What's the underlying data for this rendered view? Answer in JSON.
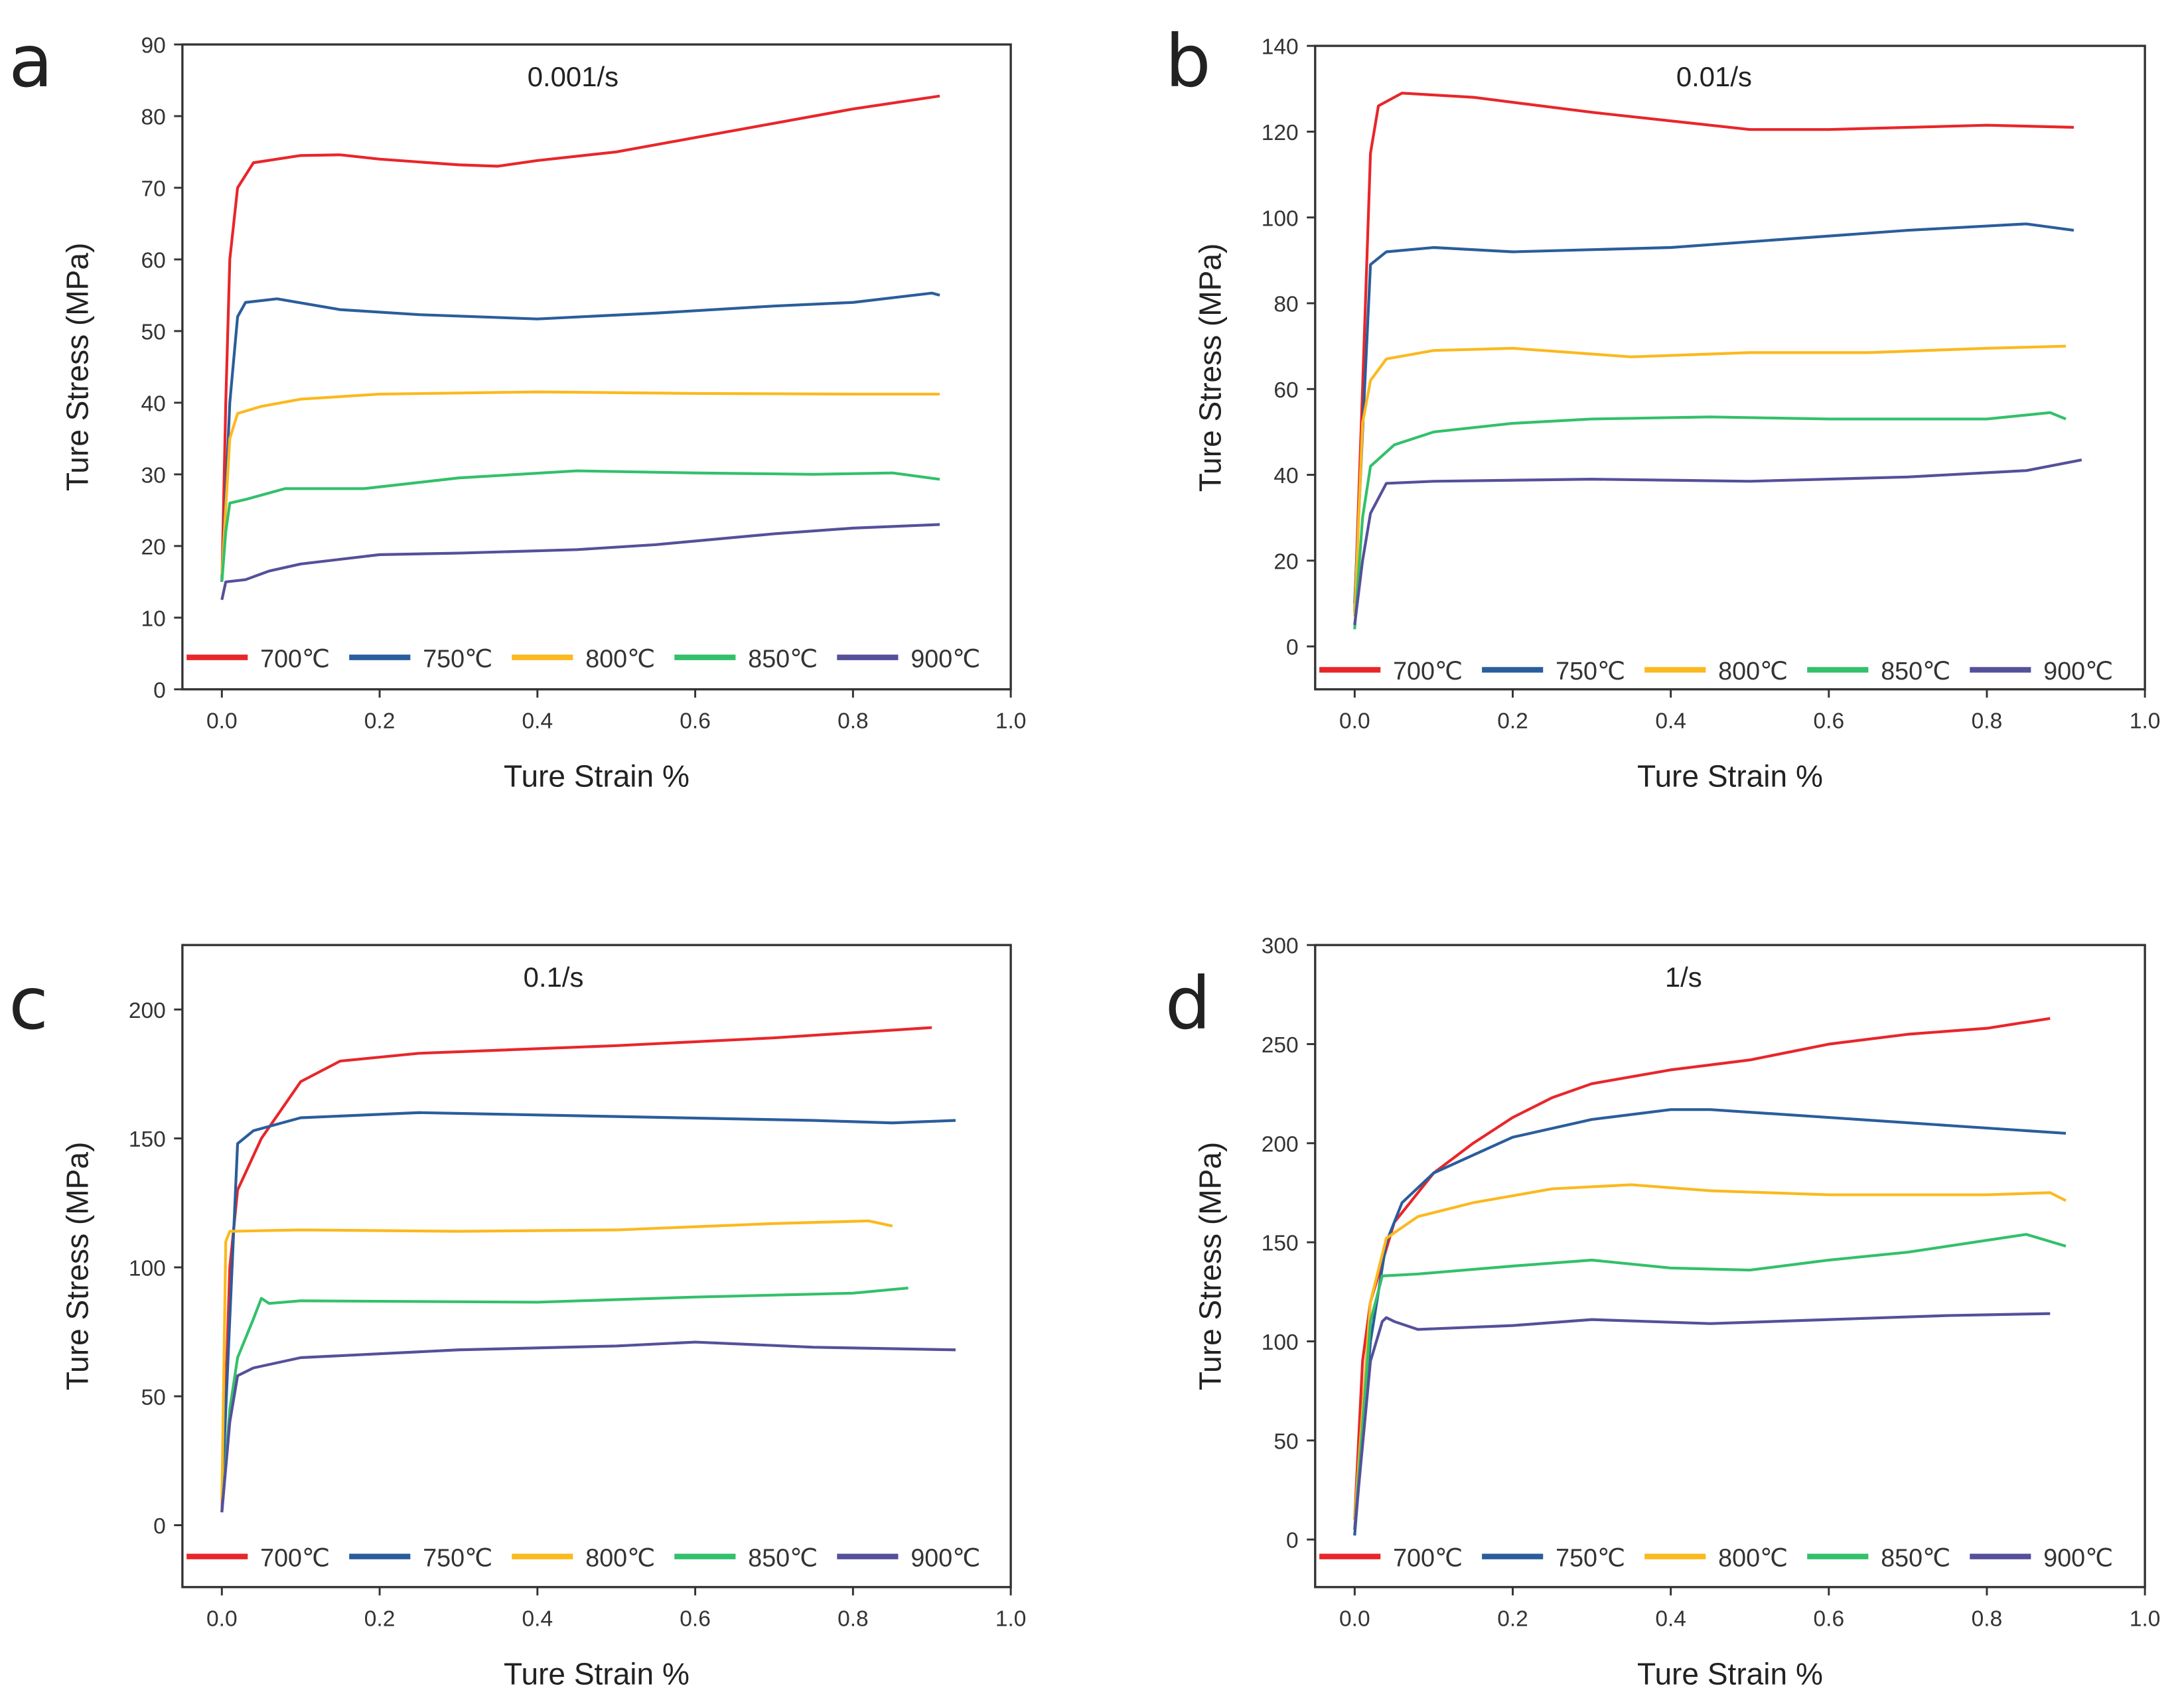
{
  "chart_data": [
    {
      "type": "line",
      "panel_label": "a",
      "title": "0.001/s",
      "xlabel": "Ture Strain %",
      "ylabel": "Ture Stress (MPa)",
      "xlim": [
        -0.05,
        1.0
      ],
      "ylim": [
        0,
        90
      ],
      "xticks": [
        0.0,
        0.2,
        0.4,
        0.6,
        0.8,
        1.0
      ],
      "yticks": [
        0,
        10,
        20,
        30,
        40,
        50,
        60,
        70,
        80,
        90
      ],
      "grid": false,
      "legend_position": "bottom",
      "series": [
        {
          "name": "700℃",
          "color": "#e8262a",
          "points": [
            [
              0,
              15
            ],
            [
              0.005,
              40
            ],
            [
              0.01,
              60
            ],
            [
              0.02,
              70
            ],
            [
              0.04,
              73.5
            ],
            [
              0.1,
              74.5
            ],
            [
              0.15,
              74.6
            ],
            [
              0.2,
              74
            ],
            [
              0.3,
              73.2
            ],
            [
              0.35,
              73
            ],
            [
              0.4,
              73.8
            ],
            [
              0.5,
              75
            ],
            [
              0.6,
              77
            ],
            [
              0.7,
              79
            ],
            [
              0.8,
              81
            ],
            [
              0.91,
              82.8
            ]
          ]
        },
        {
          "name": "750℃",
          "color": "#2a5d9c",
          "points": [
            [
              0,
              15
            ],
            [
              0.01,
              40
            ],
            [
              0.02,
              52
            ],
            [
              0.03,
              54
            ],
            [
              0.07,
              54.5
            ],
            [
              0.15,
              53
            ],
            [
              0.25,
              52.3
            ],
            [
              0.4,
              51.7
            ],
            [
              0.55,
              52.5
            ],
            [
              0.7,
              53.5
            ],
            [
              0.8,
              54
            ],
            [
              0.9,
              55.3
            ],
            [
              0.91,
              55
            ]
          ]
        },
        {
          "name": "800℃",
          "color": "#fbb91f",
          "points": [
            [
              0,
              16
            ],
            [
              0.01,
              35
            ],
            [
              0.02,
              38.5
            ],
            [
              0.05,
              39.5
            ],
            [
              0.1,
              40.5
            ],
            [
              0.2,
              41.2
            ],
            [
              0.4,
              41.5
            ],
            [
              0.6,
              41.3
            ],
            [
              0.8,
              41.2
            ],
            [
              0.91,
              41.2
            ]
          ]
        },
        {
          "name": "850℃",
          "color": "#33c06b",
          "points": [
            [
              0,
              15
            ],
            [
              0.005,
              22
            ],
            [
              0.01,
              26
            ],
            [
              0.03,
              26.5
            ],
            [
              0.08,
              28
            ],
            [
              0.18,
              28
            ],
            [
              0.3,
              29.5
            ],
            [
              0.45,
              30.5
            ],
            [
              0.6,
              30.2
            ],
            [
              0.75,
              30
            ],
            [
              0.85,
              30.2
            ],
            [
              0.91,
              29.3
            ]
          ]
        },
        {
          "name": "900℃",
          "color": "#55509a",
          "points": [
            [
              0,
              12.5
            ],
            [
              0.005,
              15
            ],
            [
              0.03,
              15.3
            ],
            [
              0.06,
              16.5
            ],
            [
              0.1,
              17.5
            ],
            [
              0.2,
              18.8
            ],
            [
              0.3,
              19
            ],
            [
              0.45,
              19.5
            ],
            [
              0.55,
              20.2
            ],
            [
              0.7,
              21.7
            ],
            [
              0.8,
              22.5
            ],
            [
              0.91,
              23
            ]
          ]
        }
      ]
    },
    {
      "type": "line",
      "panel_label": "b",
      "title": "0.01/s",
      "xlabel": "Ture Strain %",
      "ylabel": "Ture Stress (MPa)",
      "xlim": [
        -0.05,
        1.0
      ],
      "ylim": [
        -10,
        140
      ],
      "xticks": [
        0.0,
        0.2,
        0.4,
        0.6,
        0.8,
        1.0
      ],
      "yticks": [
        0,
        20,
        40,
        60,
        80,
        100,
        120,
        140
      ],
      "grid": false,
      "legend_position": "bottom",
      "series": [
        {
          "name": "700℃",
          "color": "#e8262a",
          "points": [
            [
              0,
              8
            ],
            [
              0.01,
              60
            ],
            [
              0.02,
              115
            ],
            [
              0.03,
              126
            ],
            [
              0.06,
              129
            ],
            [
              0.15,
              128
            ],
            [
              0.3,
              124.5
            ],
            [
              0.5,
              120.5
            ],
            [
              0.6,
              120.5
            ],
            [
              0.8,
              121.5
            ],
            [
              0.91,
              121
            ]
          ]
        },
        {
          "name": "750℃",
          "color": "#2a5d9c",
          "points": [
            [
              0,
              10
            ],
            [
              0.01,
              50
            ],
            [
              0.02,
              89
            ],
            [
              0.04,
              92
            ],
            [
              0.1,
              93
            ],
            [
              0.2,
              92
            ],
            [
              0.4,
              93
            ],
            [
              0.55,
              95
            ],
            [
              0.7,
              97
            ],
            [
              0.85,
              98.5
            ],
            [
              0.91,
              97
            ]
          ]
        },
        {
          "name": "800℃",
          "color": "#fbb91f",
          "points": [
            [
              0,
              7
            ],
            [
              0.01,
              52
            ],
            [
              0.02,
              62
            ],
            [
              0.04,
              67
            ],
            [
              0.1,
              69
            ],
            [
              0.2,
              69.5
            ],
            [
              0.35,
              67.5
            ],
            [
              0.5,
              68.5
            ],
            [
              0.65,
              68.5
            ],
            [
              0.8,
              69.5
            ],
            [
              0.9,
              70
            ]
          ]
        },
        {
          "name": "850℃",
          "color": "#33c06b",
          "points": [
            [
              0,
              4
            ],
            [
              0.01,
              30
            ],
            [
              0.02,
              42
            ],
            [
              0.05,
              47
            ],
            [
              0.1,
              50
            ],
            [
              0.2,
              52
            ],
            [
              0.3,
              53
            ],
            [
              0.45,
              53.5
            ],
            [
              0.6,
              53
            ],
            [
              0.8,
              53
            ],
            [
              0.88,
              54.5
            ],
            [
              0.9,
              53
            ]
          ]
        },
        {
          "name": "900℃",
          "color": "#55509a",
          "points": [
            [
              0,
              5
            ],
            [
              0.01,
              20
            ],
            [
              0.02,
              31
            ],
            [
              0.04,
              38
            ],
            [
              0.1,
              38.5
            ],
            [
              0.3,
              39
            ],
            [
              0.5,
              38.5
            ],
            [
              0.7,
              39.5
            ],
            [
              0.85,
              41
            ],
            [
              0.92,
              43.5
            ]
          ]
        }
      ]
    },
    {
      "type": "line",
      "panel_label": "c",
      "title": "0.1/s",
      "xlabel": "Ture Strain %",
      "ylabel": "Ture Stress (MPa)",
      "xlim": [
        -0.05,
        1.0
      ],
      "ylim": [
        -24,
        225
      ],
      "xticks": [
        0.0,
        0.2,
        0.4,
        0.6,
        0.8,
        1.0
      ],
      "yticks": [
        0,
        50,
        100,
        150,
        200
      ],
      "grid": false,
      "legend_position": "bottom",
      "series": [
        {
          "name": "700℃",
          "color": "#e8262a",
          "points": [
            [
              0,
              5
            ],
            [
              0.01,
              100
            ],
            [
              0.02,
              130
            ],
            [
              0.05,
              150
            ],
            [
              0.1,
              172
            ],
            [
              0.15,
              180
            ],
            [
              0.25,
              183
            ],
            [
              0.5,
              186
            ],
            [
              0.7,
              189
            ],
            [
              0.9,
              193
            ]
          ]
        },
        {
          "name": "750℃",
          "color": "#2a5d9c",
          "points": [
            [
              0,
              10
            ],
            [
              0.01,
              80
            ],
            [
              0.02,
              148
            ],
            [
              0.04,
              153
            ],
            [
              0.1,
              158
            ],
            [
              0.25,
              160
            ],
            [
              0.5,
              158.5
            ],
            [
              0.75,
              157
            ],
            [
              0.85,
              156
            ],
            [
              0.93,
              157
            ]
          ]
        },
        {
          "name": "800℃",
          "color": "#fbb91f",
          "points": [
            [
              0,
              10
            ],
            [
              0.005,
              110
            ],
            [
              0.01,
              114
            ],
            [
              0.1,
              114.5
            ],
            [
              0.3,
              114
            ],
            [
              0.5,
              114.5
            ],
            [
              0.7,
              117
            ],
            [
              0.82,
              118
            ],
            [
              0.85,
              116
            ]
          ]
        },
        {
          "name": "850℃",
          "color": "#33c06b",
          "points": [
            [
              0,
              5
            ],
            [
              0.01,
              45
            ],
            [
              0.02,
              65
            ],
            [
              0.04,
              80
            ],
            [
              0.05,
              88
            ],
            [
              0.06,
              86
            ],
            [
              0.1,
              87
            ],
            [
              0.4,
              86.5
            ],
            [
              0.6,
              88.5
            ],
            [
              0.8,
              90
            ],
            [
              0.87,
              92
            ]
          ]
        },
        {
          "name": "900℃",
          "color": "#55509a",
          "points": [
            [
              0,
              5
            ],
            [
              0.01,
              40
            ],
            [
              0.02,
              58
            ],
            [
              0.04,
              61
            ],
            [
              0.1,
              65
            ],
            [
              0.3,
              68
            ],
            [
              0.5,
              69.5
            ],
            [
              0.6,
              71
            ],
            [
              0.75,
              69
            ],
            [
              0.93,
              68
            ]
          ]
        }
      ]
    },
    {
      "type": "line",
      "panel_label": "d",
      "title": "1/s",
      "xlabel": "Ture Strain %",
      "ylabel": "Ture Stress (MPa)",
      "xlim": [
        -0.05,
        1.0
      ],
      "ylim": [
        -24,
        300
      ],
      "xticks": [
        0.0,
        0.2,
        0.4,
        0.6,
        0.8,
        1.0
      ],
      "yticks": [
        0,
        50,
        100,
        150,
        200,
        250,
        300
      ],
      "grid": false,
      "legend_position": "bottom",
      "series": [
        {
          "name": "700℃",
          "color": "#e8262a",
          "points": [
            [
              0,
              10
            ],
            [
              0.01,
              90
            ],
            [
              0.02,
              120
            ],
            [
              0.05,
              160
            ],
            [
              0.1,
              185
            ],
            [
              0.15,
              200
            ],
            [
              0.2,
              213
            ],
            [
              0.25,
              223
            ],
            [
              0.3,
              230
            ],
            [
              0.4,
              237
            ],
            [
              0.5,
              242
            ],
            [
              0.6,
              250
            ],
            [
              0.7,
              255
            ],
            [
              0.8,
              258
            ],
            [
              0.88,
              263
            ]
          ]
        },
        {
          "name": "750℃",
          "color": "#2a5d9c",
          "points": [
            [
              0,
              2
            ],
            [
              0.02,
              100
            ],
            [
              0.04,
              150
            ],
            [
              0.06,
              170
            ],
            [
              0.1,
              185
            ],
            [
              0.2,
              203
            ],
            [
              0.3,
              212
            ],
            [
              0.4,
              217
            ],
            [
              0.45,
              217
            ],
            [
              0.6,
              213
            ],
            [
              0.75,
              209
            ],
            [
              0.9,
              205
            ]
          ]
        },
        {
          "name": "800℃",
          "color": "#fbb91f",
          "points": [
            [
              0,
              10
            ],
            [
              0.02,
              120
            ],
            [
              0.04,
              152
            ],
            [
              0.08,
              163
            ],
            [
              0.15,
              170
            ],
            [
              0.25,
              177
            ],
            [
              0.35,
              179
            ],
            [
              0.45,
              176
            ],
            [
              0.6,
              174
            ],
            [
              0.8,
              174
            ],
            [
              0.88,
              175
            ],
            [
              0.9,
              171
            ]
          ]
        },
        {
          "name": "850℃",
          "color": "#33c06b",
          "points": [
            [
              0,
              5
            ],
            [
              0.02,
              110
            ],
            [
              0.035,
              133
            ],
            [
              0.08,
              134
            ],
            [
              0.2,
              138
            ],
            [
              0.3,
              141
            ],
            [
              0.4,
              137
            ],
            [
              0.5,
              136
            ],
            [
              0.6,
              141
            ],
            [
              0.7,
              145
            ],
            [
              0.85,
              154
            ],
            [
              0.9,
              148
            ]
          ]
        },
        {
          "name": "900℃",
          "color": "#55509a",
          "points": [
            [
              0,
              5
            ],
            [
              0.02,
              90
            ],
            [
              0.035,
              110
            ],
            [
              0.04,
              112
            ],
            [
              0.05,
              110
            ],
            [
              0.08,
              106
            ],
            [
              0.2,
              108
            ],
            [
              0.3,
              111
            ],
            [
              0.45,
              109
            ],
            [
              0.6,
              111
            ],
            [
              0.75,
              113
            ],
            [
              0.88,
              114
            ]
          ]
        }
      ]
    }
  ]
}
